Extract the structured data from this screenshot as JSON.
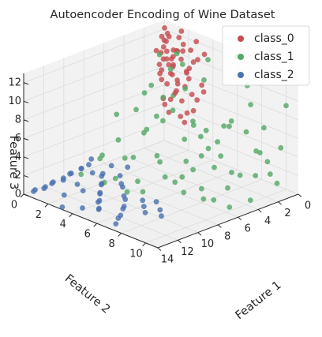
{
  "chart_data": {
    "type": "scatter",
    "projection": "3d",
    "title": "Autoencoder Encoding of Wine Dataset",
    "xlabel": "Feature 1",
    "ylabel": "Feature 2",
    "zlabel": "Feature 3",
    "xlim": [
      0,
      14
    ],
    "ylim": [
      0,
      11
    ],
    "zlim": [
      0,
      13
    ],
    "xticks": [
      0,
      2,
      4,
      6,
      8,
      10,
      12,
      14
    ],
    "yticks": [
      0,
      2,
      4,
      6,
      8,
      10
    ],
    "zticks": [
      0,
      2,
      4,
      6,
      8,
      10,
      12
    ],
    "grid": true,
    "legend_position": "top-right",
    "series": [
      {
        "name": "class_0",
        "color": "#c44e52",
        "points": [
          [
            0.0,
            0.0,
            10.8
          ],
          [
            0.1,
            0.3,
            9.8
          ],
          [
            0.0,
            0.4,
            11.4
          ],
          [
            0.2,
            0.1,
            8.9
          ],
          [
            0.0,
            0.6,
            9.1
          ],
          [
            0.3,
            0.2,
            10.3
          ],
          [
            0.1,
            0.8,
            8.4
          ],
          [
            0.4,
            0.5,
            11.1
          ],
          [
            0.2,
            0.9,
            9.6
          ],
          [
            0.0,
            1.1,
            10.2
          ],
          [
            0.5,
            0.2,
            7.9
          ],
          [
            0.3,
            1.0,
            8.8
          ],
          [
            0.1,
            1.3,
            11.8
          ],
          [
            0.6,
            0.7,
            9.4
          ],
          [
            0.4,
            1.4,
            7.4
          ],
          [
            0.2,
            1.7,
            10.6
          ],
          [
            0.7,
            1.1,
            8.1
          ],
          [
            0.5,
            1.8,
            9.9
          ],
          [
            0.8,
            0.9,
            6.9
          ],
          [
            0.3,
            2.1,
            8.5
          ],
          [
            0.9,
            1.5,
            10.9
          ],
          [
            0.6,
            2.2,
            7.2
          ],
          [
            1.0,
            1.2,
            9.2
          ],
          [
            0.4,
            2.5,
            11.2
          ],
          [
            1.1,
            1.8,
            6.5
          ],
          [
            0.7,
            2.6,
            8.3
          ],
          [
            1.2,
            2.1,
            7.7
          ],
          [
            0.9,
            2.8,
            9.6
          ],
          [
            1.3,
            1.6,
            5.8
          ],
          [
            1.0,
            3.1,
            7.0
          ],
          [
            0.2,
            0.2,
            12.3
          ],
          [
            0.4,
            0.6,
            12.0
          ],
          [
            0.6,
            0.3,
            11.6
          ],
          [
            0.1,
            1.5,
            12.6
          ],
          [
            0.8,
            0.4,
            10.0
          ],
          [
            0.0,
            2.4,
            9.7
          ],
          [
            1.4,
            2.6,
            6.2
          ],
          [
            1.5,
            1.9,
            8.7
          ],
          [
            0.3,
            3.0,
            10.4
          ],
          [
            1.6,
            3.2,
            5.3
          ],
          [
            1.2,
            0.6,
            9.0
          ],
          [
            0.5,
            3.5,
            8.0
          ],
          [
            1.7,
            2.4,
            7.3
          ],
          [
            0.0,
            3.3,
            11.0
          ],
          [
            1.8,
            1.4,
            6.0
          ],
          [
            1.1,
            3.6,
            6.7
          ],
          [
            0.6,
            1.5,
            10.7
          ],
          [
            1.4,
            0.8,
            8.2
          ],
          [
            1.9,
            2.9,
            4.9
          ],
          [
            0.2,
            2.8,
            12.2
          ],
          [
            2.0,
            1.7,
            5.6
          ],
          [
            0.8,
            3.9,
            7.6
          ],
          [
            2.1,
            3.4,
            4.6
          ],
          [
            1.3,
            2.9,
            9.5
          ],
          [
            0.4,
            1.9,
            11.5
          ],
          [
            1.6,
            1.1,
            7.8
          ],
          [
            2.2,
            2.2,
            5.1
          ],
          [
            0.9,
            0.1,
            10.1
          ],
          [
            1.7,
            3.8,
            5.9
          ]
        ]
      },
      {
        "name": "class_1",
        "color": "#55a868",
        "points": [
          [
            0.0,
            6.0,
            12.2
          ],
          [
            1.5,
            4.5,
            9.5
          ],
          [
            0.5,
            7.5,
            8.0
          ],
          [
            3.0,
            3.0,
            10.5
          ],
          [
            1.0,
            9.0,
            6.5
          ],
          [
            2.5,
            5.5,
            5.0
          ],
          [
            0.0,
            10.0,
            9.0
          ],
          [
            4.0,
            4.0,
            7.0
          ],
          [
            3.5,
            6.5,
            4.0
          ],
          [
            0.8,
            8.2,
            3.5
          ],
          [
            5.0,
            2.5,
            8.5
          ],
          [
            2.0,
            9.5,
            4.5
          ],
          [
            4.5,
            5.5,
            2.5
          ],
          [
            1.2,
            6.5,
            6.0
          ],
          [
            6.0,
            3.5,
            5.5
          ],
          [
            3.0,
            8.0,
            2.0
          ],
          [
            0.5,
            4.0,
            11.0
          ],
          [
            5.5,
            6.0,
            1.5
          ],
          [
            2.2,
            10.5,
            2.8
          ],
          [
            7.0,
            2.0,
            4.0
          ],
          [
            4.0,
            8.5,
            1.0
          ],
          [
            1.8,
            3.2,
            8.0
          ],
          [
            6.5,
            5.0,
            3.0
          ],
          [
            0.3,
            9.5,
            0.5
          ],
          [
            3.5,
            2.5,
            12.0
          ],
          [
            8.0,
            1.5,
            2.5
          ],
          [
            2.8,
            7.2,
            6.5
          ],
          [
            5.2,
            4.2,
            9.0
          ],
          [
            1.0,
            5.2,
            3.0
          ],
          [
            7.5,
            4.0,
            0.8
          ],
          [
            3.8,
            10.2,
            0.5
          ],
          [
            2.5,
            1.0,
            7.5
          ],
          [
            6.2,
            1.2,
            6.0
          ],
          [
            0.0,
            3.0,
            2.0
          ],
          [
            4.8,
            7.0,
            4.0
          ],
          [
            8.5,
            3.0,
            1.0
          ],
          [
            1.5,
            10.8,
            5.5
          ],
          [
            5.8,
            8.0,
            0.3
          ],
          [
            3.2,
            5.0,
            0.8
          ],
          [
            0.6,
            2.0,
            9.5
          ],
          [
            7.2,
            6.0,
            2.2
          ],
          [
            2.0,
            4.0,
            5.0
          ],
          [
            4.2,
            1.8,
            3.5
          ],
          [
            9.0,
            2.5,
            0.5
          ],
          [
            1.2,
            7.8,
            10.5
          ],
          [
            6.8,
            7.2,
            1.0
          ],
          [
            3.0,
            9.2,
            7.0
          ],
          [
            5.5,
            2.0,
            1.5
          ],
          [
            0.2,
            5.5,
            4.5
          ],
          [
            8.2,
            5.0,
            0.5
          ],
          [
            2.6,
            3.8,
            3.2
          ],
          [
            4.6,
            6.2,
            6.8
          ],
          [
            1.6,
            8.8,
            1.5
          ],
          [
            7.8,
            3.2,
            3.0
          ],
          [
            3.4,
            0.5,
            5.0
          ],
          [
            6.0,
            9.0,
            0.8
          ],
          [
            0.9,
            1.5,
            6.0
          ],
          [
            5.0,
            5.0,
            0.2
          ],
          [
            2.3,
            6.0,
            1.2
          ],
          [
            9.5,
            1.0,
            0.8
          ],
          [
            4.4,
            3.0,
            6.0
          ],
          [
            1.1,
            0.8,
            3.0
          ],
          [
            6.6,
            8.5,
            2.0
          ],
          [
            3.6,
            7.6,
            3.8
          ],
          [
            0.4,
            8.8,
            2.5
          ],
          [
            7.0,
            0.5,
            1.2
          ],
          [
            2.9,
            1.8,
            0.5
          ],
          [
            5.4,
            9.8,
            0.2
          ],
          [
            1.9,
            2.6,
            11.5
          ],
          [
            8.8,
            4.2,
            0.3
          ],
          [
            4.1,
            9.6,
            3.0
          ]
        ]
      },
      {
        "name": "class_2",
        "color": "#4c72b0",
        "points": [
          [
            7.5,
            0.2,
            1.2
          ],
          [
            8.0,
            0.4,
            0.9
          ],
          [
            8.6,
            0.3,
            0.7
          ],
          [
            9.0,
            0.6,
            1.0
          ],
          [
            9.5,
            0.2,
            0.5
          ],
          [
            10.0,
            0.5,
            0.8
          ],
          [
            10.4,
            0.3,
            0.4
          ],
          [
            10.9,
            0.7,
            0.6
          ],
          [
            11.3,
            0.2,
            0.3
          ],
          [
            11.8,
            0.5,
            0.5
          ],
          [
            12.2,
            0.3,
            0.2
          ],
          [
            12.7,
            0.6,
            0.4
          ],
          [
            13.1,
            0.2,
            0.2
          ],
          [
            13.5,
            0.4,
            0.3
          ],
          [
            8.3,
            1.8,
            0.8
          ],
          [
            8.9,
            2.2,
            1.0
          ],
          [
            9.4,
            2.6,
            0.6
          ],
          [
            9.9,
            3.0,
            0.9
          ],
          [
            10.4,
            3.3,
            0.4
          ],
          [
            10.9,
            3.7,
            0.7
          ],
          [
            11.3,
            4.0,
            0.3
          ],
          [
            11.8,
            4.3,
            0.5
          ],
          [
            12.2,
            4.7,
            0.2
          ],
          [
            12.6,
            5.0,
            0.4
          ],
          [
            7.8,
            2.8,
            0.9
          ],
          [
            8.4,
            3.4,
            0.6
          ],
          [
            9.0,
            4.0,
            0.8
          ],
          [
            9.6,
            4.6,
            0.4
          ],
          [
            10.2,
            5.2,
            0.6
          ],
          [
            10.8,
            5.6,
            0.3
          ],
          [
            11.4,
            6.0,
            0.5
          ],
          [
            12.0,
            6.3,
            0.2
          ],
          [
            12.6,
            6.6,
            0.3
          ],
          [
            13.2,
            6.9,
            0.1
          ],
          [
            9.2,
            5.8,
            0.4
          ],
          [
            9.8,
            6.4,
            0.3
          ],
          [
            10.4,
            7.0,
            0.2
          ],
          [
            8.8,
            6.6,
            0.5
          ],
          [
            9.4,
            7.4,
            0.3
          ],
          [
            10.0,
            8.0,
            0.2
          ],
          [
            7.2,
            1.6,
            1.1
          ],
          [
            6.8,
            2.6,
            1.3
          ],
          [
            8.6,
            1.2,
            0.7
          ],
          [
            10.6,
            1.6,
            0.5
          ],
          [
            12.4,
            2.0,
            0.3
          ],
          [
            11.0,
            2.4,
            0.4
          ],
          [
            13.8,
            3.0,
            0.1
          ],
          [
            13.0,
            4.0,
            0.2
          ]
        ]
      }
    ]
  }
}
